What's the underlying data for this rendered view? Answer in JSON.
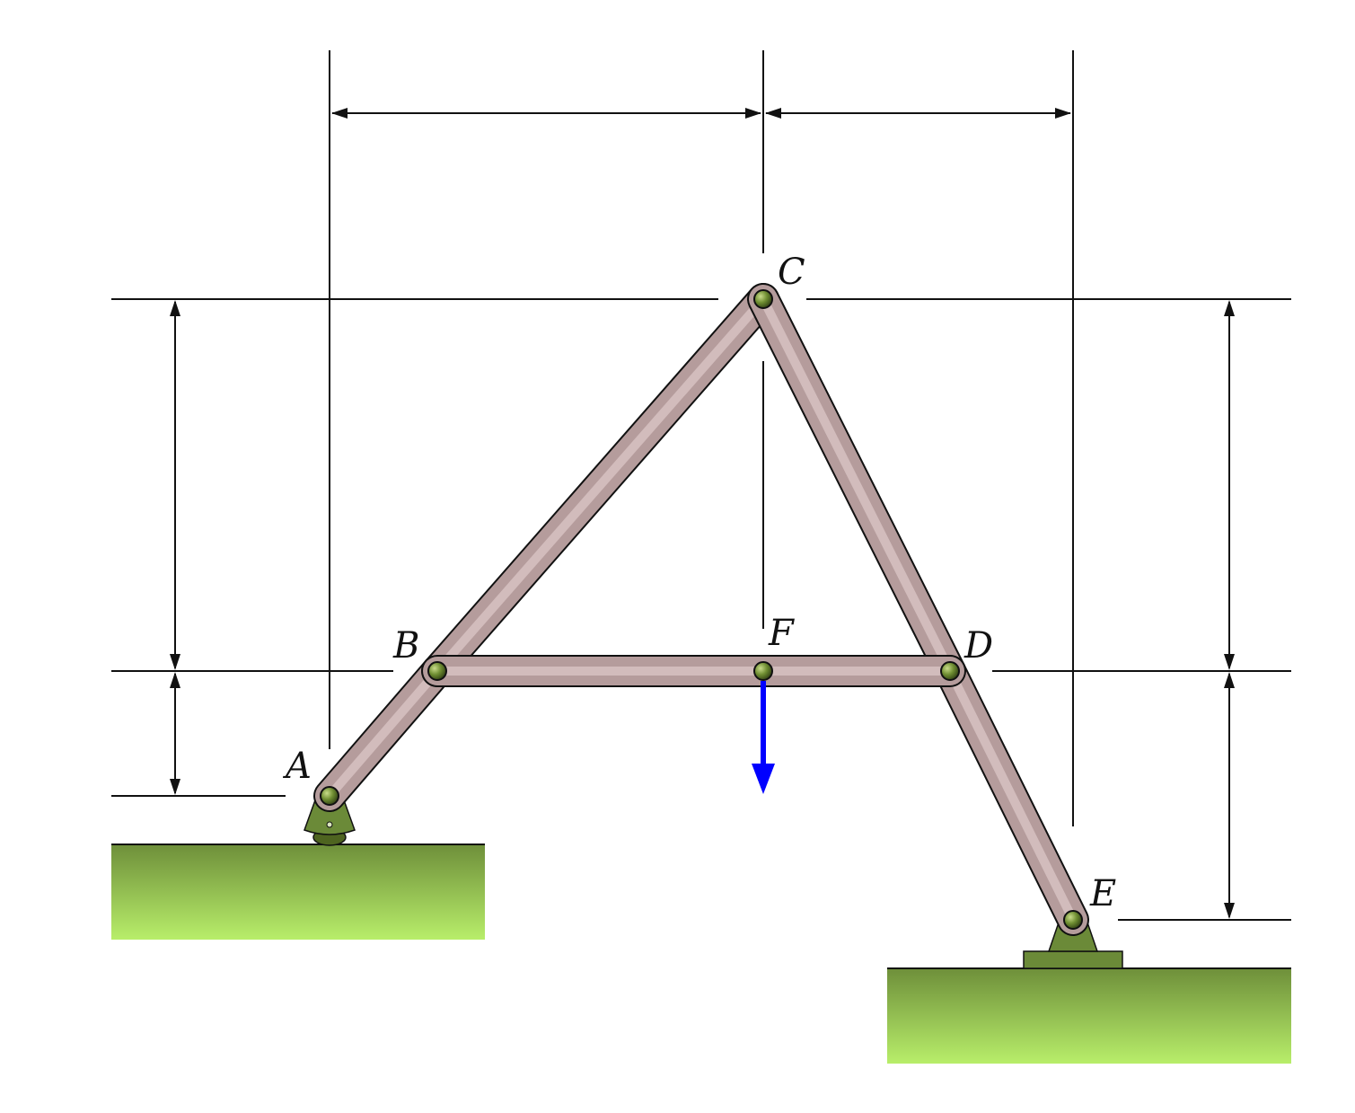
{
  "labels": {
    "A": "A",
    "B": "B",
    "C": "C",
    "D": "D",
    "E": "E",
    "F": "F"
  },
  "colors": {
    "member_fill": "#B59C9C",
    "member_highlight": "#D2BCBC",
    "pin_fill": "#5E7A2A",
    "support_fill": "#6B8A38",
    "ground_top": "#6E8F3A",
    "ground_bottom": "#B8EE6A",
    "force_arrow": "#0000FF",
    "lines": "#111111"
  },
  "icons": {
    "pin_joint": "pin-joint-icon",
    "pin_support": "pin-support-icon",
    "roller_support": "roller-support-icon",
    "force_arrow": "down-arrow-icon"
  }
}
